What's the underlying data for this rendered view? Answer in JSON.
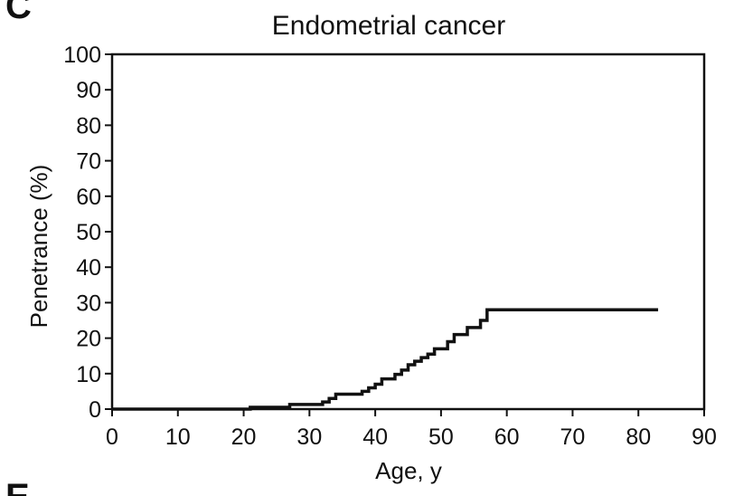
{
  "panel_labels": {
    "top": "C",
    "bottom": "E"
  },
  "chart_data": {
    "type": "line",
    "step": true,
    "title": "Endometrial cancer",
    "xlabel": "Age, y",
    "ylabel": "Penetrance (%)",
    "xlim": [
      0,
      90
    ],
    "ylim": [
      0,
      100
    ],
    "xticks": [
      0,
      10,
      20,
      30,
      40,
      50,
      60,
      70,
      80,
      90
    ],
    "yticks": [
      0,
      10,
      20,
      30,
      40,
      50,
      60,
      70,
      80,
      90,
      100
    ],
    "grid": false,
    "series": [
      {
        "name": "Penetrance",
        "color": "#111111",
        "x": [
          0,
          21,
          27,
          32,
          33,
          34,
          38,
          39,
          40,
          41,
          43,
          44,
          45,
          46,
          47,
          48,
          49,
          51,
          52,
          54,
          56,
          57,
          83
        ],
        "y": [
          0,
          0.5,
          1.3,
          2,
          3,
          4.2,
          5,
          6,
          7,
          8.5,
          9.8,
          11,
          12.5,
          13.5,
          14.5,
          15.5,
          17,
          19,
          21,
          23,
          25,
          28,
          28
        ]
      }
    ]
  }
}
